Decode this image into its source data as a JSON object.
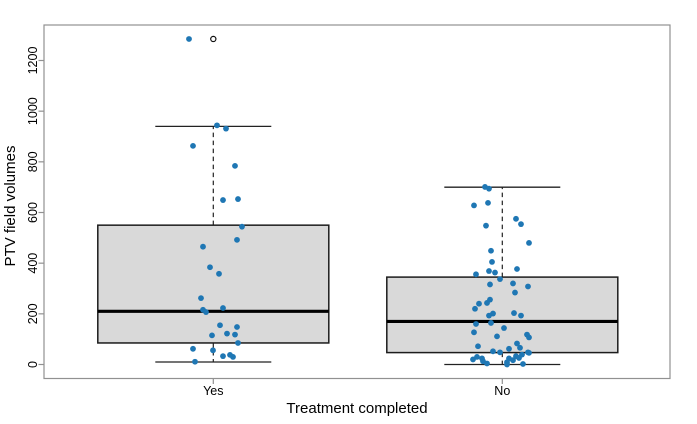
{
  "chart_data": {
    "type": "boxplot",
    "title": "",
    "xlabel": "Treatment completed",
    "ylabel": "PTV field volumes",
    "categories": [
      "Yes",
      "No"
    ],
    "y_ticks": [
      0,
      200,
      400,
      600,
      800,
      1000,
      1200
    ],
    "ylim": [
      0,
      1340
    ],
    "grid": false,
    "legend": "none",
    "colors": {
      "point": "#1f77b4",
      "box_fill": "#d9d9d9",
      "box_border": "#1c1c1c",
      "median": "#000000",
      "whisker": "#222222",
      "frame": "#919191",
      "text": "#000000"
    },
    "groups": [
      {
        "label": "Yes",
        "lower_whisker": 10,
        "q1": 85,
        "median": 210,
        "q3": 550,
        "upper_whisker": 940,
        "outliers": [
          1285
        ],
        "points": [
          [
            189,
            1285
          ],
          [
            217,
            944
          ],
          [
            226,
            931
          ],
          [
            193,
            863
          ],
          [
            235,
            784
          ],
          [
            238,
            653
          ],
          [
            223,
            649
          ],
          [
            242,
            544
          ],
          [
            237,
            492
          ],
          [
            203,
            465
          ],
          [
            210,
            384
          ],
          [
            219,
            358
          ],
          [
            201,
            262
          ],
          [
            223,
            223
          ],
          [
            203,
            216
          ],
          [
            206,
            207
          ],
          [
            220,
            155
          ],
          [
            237,
            148
          ],
          [
            227,
            122
          ],
          [
            235,
            118
          ],
          [
            212,
            115
          ],
          [
            238,
            85
          ],
          [
            193,
            62
          ],
          [
            213,
            56
          ],
          [
            233,
            30
          ],
          [
            223,
            33
          ],
          [
            230,
            38
          ],
          [
            195,
            11
          ]
        ]
      },
      {
        "label": "No",
        "lower_whisker": 0,
        "q1": 47,
        "median": 170,
        "q3": 345,
        "upper_whisker": 700,
        "outliers": [],
        "points": [
          [
            485,
            701
          ],
          [
            489,
            694
          ],
          [
            474,
            628
          ],
          [
            488,
            638
          ],
          [
            516,
            575
          ],
          [
            521,
            554
          ],
          [
            486,
            548
          ],
          [
            529,
            480
          ],
          [
            491,
            449
          ],
          [
            492,
            405
          ],
          [
            489,
            369
          ],
          [
            495,
            363
          ],
          [
            517,
            377
          ],
          [
            476,
            356
          ],
          [
            500,
            337
          ],
          [
            513,
            320
          ],
          [
            490,
            316
          ],
          [
            528,
            308
          ],
          [
            515,
            284
          ],
          [
            490,
            256
          ],
          [
            487,
            243
          ],
          [
            479,
            240
          ],
          [
            475,
            220
          ],
          [
            514,
            203
          ],
          [
            493,
            201
          ],
          [
            521,
            193
          ],
          [
            489,
            193
          ],
          [
            491,
            164
          ],
          [
            476,
            160
          ],
          [
            504,
            144
          ],
          [
            474,
            127
          ],
          [
            497,
            111
          ],
          [
            527,
            118
          ],
          [
            529,
            107
          ],
          [
            478,
            72
          ],
          [
            517,
            83
          ],
          [
            509,
            62
          ],
          [
            520,
            66
          ],
          [
            528,
            48
          ],
          [
            500,
            48
          ],
          [
            493,
            52
          ],
          [
            473,
            20
          ],
          [
            477,
            30
          ],
          [
            482,
            24
          ],
          [
            483,
            13
          ],
          [
            487,
            4
          ],
          [
            507,
            9
          ],
          [
            509,
            24
          ],
          [
            513,
            17
          ],
          [
            516,
            33
          ],
          [
            519,
            26
          ],
          [
            522,
            39
          ],
          [
            529,
            46
          ],
          [
            507,
            0
          ],
          [
            523,
            2
          ]
        ]
      }
    ]
  }
}
